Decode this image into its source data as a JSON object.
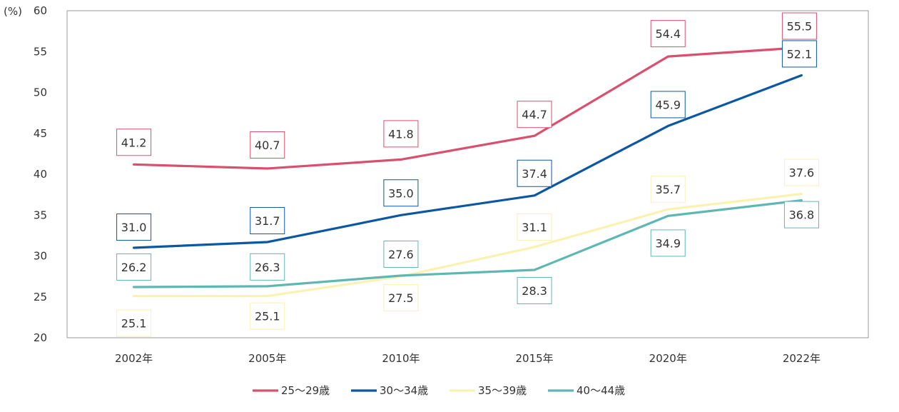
{
  "chart_data": {
    "type": "line",
    "title": "",
    "xlabel": "",
    "ylabel": "(%)",
    "ylim": [
      20,
      60
    ],
    "y_ticks": [
      "20",
      "25",
      "30",
      "35",
      "40",
      "45",
      "50",
      "55",
      "60"
    ],
    "categories": [
      "2002年",
      "2005年",
      "2010年",
      "2015年",
      "2020年",
      "2022年"
    ],
    "grid": false,
    "legend_position": "bottom",
    "series": [
      {
        "name": "25～29歳",
        "color": "#D9506E",
        "values": [
          41.2,
          40.7,
          41.8,
          44.7,
          54.4,
          55.5
        ],
        "labels": [
          "41.2",
          "40.7",
          "41.8",
          "44.7",
          "54.4",
          "55.5"
        ]
      },
      {
        "name": "30～34歳",
        "color": "#0B57A4",
        "values": [
          31.0,
          31.7,
          35.0,
          37.4,
          45.9,
          52.1
        ],
        "labels": [
          "31.0",
          "31.7",
          "35.0",
          "37.4",
          "45.9",
          "52.1"
        ]
      },
      {
        "name": "35～39歳",
        "color": "#FBF1B0",
        "values": [
          25.1,
          25.1,
          27.5,
          31.1,
          35.7,
          37.6
        ],
        "labels": [
          "25.1",
          "25.1",
          "27.5",
          "31.1",
          "35.7",
          "37.6"
        ]
      },
      {
        "name": "40～44歳",
        "color": "#5FB7B3",
        "values": [
          26.2,
          26.3,
          27.6,
          28.3,
          34.9,
          36.8
        ],
        "labels": [
          "26.2",
          "26.3",
          "27.6",
          "28.3",
          "34.9",
          "36.8"
        ]
      }
    ]
  }
}
